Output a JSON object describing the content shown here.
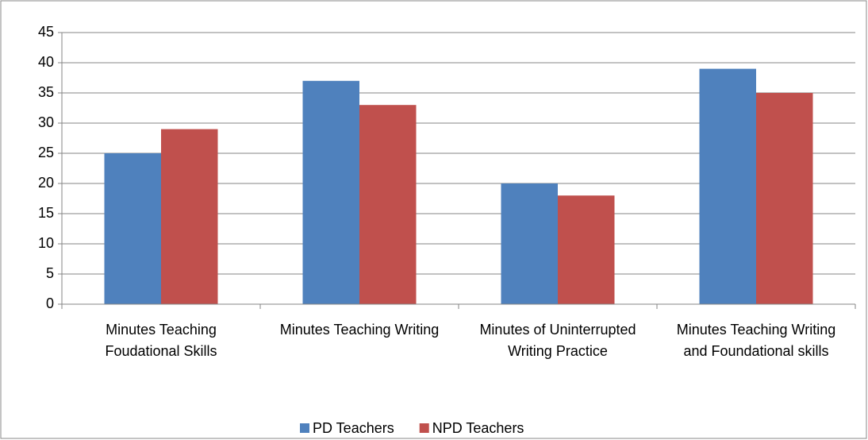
{
  "chart_data": {
    "type": "bar",
    "categories": [
      "Minutes Teaching Foudational Skills",
      "Minutes Teaching Writing",
      "Minutes of Uninterrupted Writing Practice",
      "Minutes Teaching Writing and Foundational skills"
    ],
    "series": [
      {
        "name": "PD Teachers",
        "color": "#4f81bd",
        "values": [
          25,
          37,
          20,
          39
        ]
      },
      {
        "name": "NPD Teachers",
        "color": "#c0504d",
        "values": [
          29,
          33,
          18,
          35
        ]
      }
    ],
    "ylim": [
      0,
      45
    ],
    "yticks": [
      0,
      5,
      10,
      15,
      20,
      25,
      30,
      35,
      40,
      45
    ],
    "grid": true,
    "legend": "bottom"
  }
}
